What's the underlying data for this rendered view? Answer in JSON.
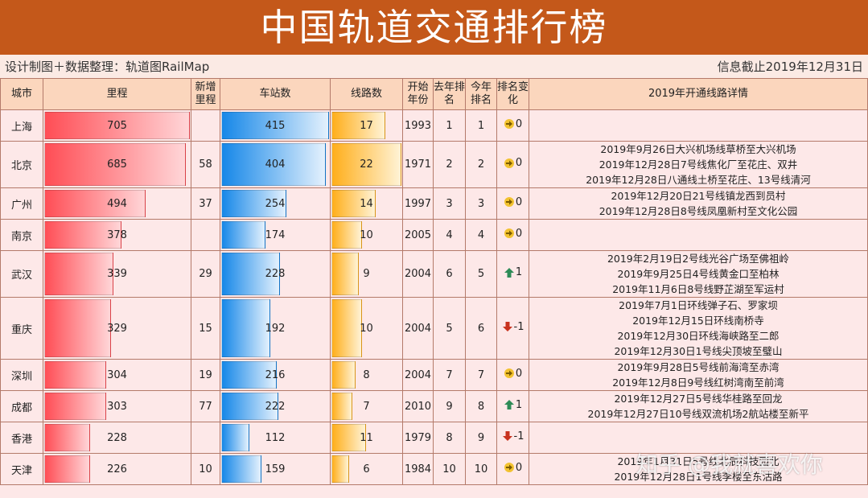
{
  "header": {
    "title": "中国轨道交通排行榜",
    "credit": "设计制图＋数据整理：轨道图RailMap",
    "date": "信息截止2019年12月31日"
  },
  "table": {
    "columns": [
      "城市",
      "里程",
      "新增里程",
      "车站数",
      "线路数",
      "开始年份",
      "去年排名",
      "今年排名",
      "排名变化",
      "2019年开通线路详情"
    ],
    "rows": [
      [
        "上海",
        705,
        null,
        415,
        17,
        1993,
        1,
        1,
        0,
        []
      ],
      [
        "北京",
        685,
        58,
        404,
        22,
        1971,
        2,
        2,
        0,
        [
          "2019年9月26日大兴机场线草桥至大兴机场",
          "2019年12月28日7号线焦化厂至花庄、双井",
          "2019年12月28日八通线土桥至花庄、13号线清河"
        ]
      ],
      [
        "广州",
        494,
        37,
        254,
        14,
        1997,
        3,
        3,
        0,
        [
          "2019年12月20日21号线镇龙西到员村",
          "2019年12月28日8号线凤凰新村至文化公园"
        ]
      ],
      [
        "南京",
        378,
        null,
        174,
        10,
        2005,
        4,
        4,
        0,
        []
      ],
      [
        "武汉",
        339,
        29,
        228,
        9,
        2004,
        6,
        5,
        1,
        [
          "2019年2月19日2号线光谷广场至佛祖岭",
          "2019年9月25日4号线黄金口至柏林",
          "2019年11月6日8号线野芷湖至军运村"
        ]
      ],
      [
        "重庆",
        329,
        15,
        192,
        10,
        2004,
        5,
        6,
        -1,
        [
          "2019年7月1日环线弹子石、罗家坝",
          "2019年12月15日环线南桥寺",
          "2019年12月30日环线海峡路至二郎",
          "2019年12月30日1号线尖顶坡至璧山"
        ]
      ],
      [
        "深圳",
        304,
        19,
        216,
        8,
        2004,
        7,
        7,
        0,
        [
          "2019年9月28日5号线前海湾至赤湾",
          "2019年12月8日9号线红树湾南至前湾"
        ]
      ],
      [
        "成都",
        303,
        77,
        222,
        7,
        2010,
        9,
        8,
        1,
        [
          "2019年12月27日5号线华桂路至回龙",
          "2019年12月27日10号线双流机场2航站楼至新平"
        ]
      ],
      [
        "香港",
        228,
        null,
        112,
        11,
        1979,
        8,
        9,
        -1,
        []
      ],
      [
        "天津",
        226,
        10,
        159,
        6,
        1984,
        10,
        10,
        0,
        [
          "2019年1月31日5号线北辰科技园北",
          "2019年12月28日1号线李楼至东沽路"
        ]
      ]
    ]
  },
  "watermark": "知乎 @我就喜欢你"
}
